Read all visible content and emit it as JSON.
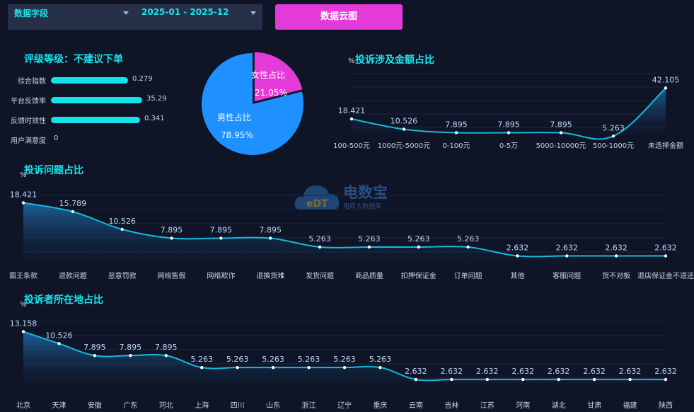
{
  "filters": {
    "field_label": "数据字段",
    "date_range": "2025-01 - 2025-12",
    "cloud_button": "数据云图"
  },
  "rating": {
    "title": "评级等级：不建议下单",
    "metrics": [
      {
        "label": "综合指数",
        "value": "0.279",
        "fraction": 0.35
      },
      {
        "label": "平台反馈率",
        "value": "35.29",
        "fraction": 0.415
      },
      {
        "label": "反馈时效性",
        "value": "0.341",
        "fraction": 0.405
      },
      {
        "label": "用户满意度",
        "value": "0",
        "fraction": 0
      }
    ]
  },
  "watermark": {
    "brand": "电数宝",
    "sub": "电商大数据库",
    "mark": "eDT"
  },
  "colors": {
    "accent": "#19e3ea",
    "pink": "#e33ad8",
    "blue": "#1e90ff",
    "line": "#17b8d8"
  },
  "chart_data": [
    {
      "type": "pie",
      "slices": [
        {
          "name": "男性占比",
          "value": 78.95,
          "label": "78.95%",
          "color": "#1e90ff"
        },
        {
          "name": "女性占比",
          "value": 21.05,
          "label": "21.05%",
          "color": "#e33ad8"
        }
      ]
    },
    {
      "type": "area",
      "title": "投诉涉及金额占比",
      "ylabel": "%",
      "categories": [
        "100-500元",
        "1000元-5000元",
        "0-100元",
        "0-5万",
        "5000-10000元",
        "500-1000元",
        "未选择金额"
      ],
      "values": [
        18.421,
        10.526,
        7.895,
        7.895,
        7.895,
        5.263,
        42.105
      ],
      "labels": [
        "18.421",
        "10.526",
        "7.895",
        "7.895",
        "7.895",
        "5.263",
        "42.105"
      ],
      "ylim": [
        0,
        45
      ]
    },
    {
      "type": "area",
      "title": "投诉问题占比",
      "ylabel": "%",
      "categories": [
        "霸王条款",
        "退款问题",
        "恶意罚款",
        "网络售假",
        "网络欺诈",
        "退换货难",
        "发货问题",
        "商品质量",
        "扣押保证金",
        "订单问题",
        "其他",
        "客服问题",
        "货不对板",
        "退店保证金不退还"
      ],
      "values": [
        18.421,
        15.789,
        10.526,
        7.895,
        7.895,
        7.895,
        5.263,
        5.263,
        5.263,
        5.263,
        2.632,
        2.632,
        2.632,
        2.632
      ],
      "labels": [
        "18.421",
        "15.789",
        "10.526",
        "7.895",
        "7.895",
        "7.895",
        "5.263",
        "5.263",
        "5.263",
        "5.263",
        "2.632",
        "2.632",
        "2.632",
        "2.632"
      ],
      "ylim": [
        0,
        20
      ]
    },
    {
      "type": "area",
      "title": "投诉者所在地占比",
      "ylabel": "%",
      "categories": [
        "北京",
        "天津",
        "安徽",
        "广东",
        "河北",
        "上海",
        "四川",
        "山东",
        "浙江",
        "辽宁",
        "重庆",
        "云南",
        "吉林",
        "江苏",
        "河南",
        "湖北",
        "甘肃",
        "福建",
        "陕西"
      ],
      "values": [
        13.158,
        10.526,
        7.895,
        7.895,
        7.895,
        5.263,
        5.263,
        5.263,
        5.263,
        5.263,
        5.263,
        2.632,
        2.632,
        2.632,
        2.632,
        2.632,
        2.632,
        2.632,
        2.632
      ],
      "labels": [
        "13.158",
        "10.526",
        "7.895",
        "7.895",
        "7.895",
        "5.263",
        "5.263",
        "5.263",
        "5.263",
        "5.263",
        "5.263",
        "2.632",
        "2.632",
        "2.632",
        "2.632",
        "2.632",
        "2.632",
        "2.632",
        "2.632"
      ],
      "ylim": [
        0,
        14
      ]
    }
  ]
}
